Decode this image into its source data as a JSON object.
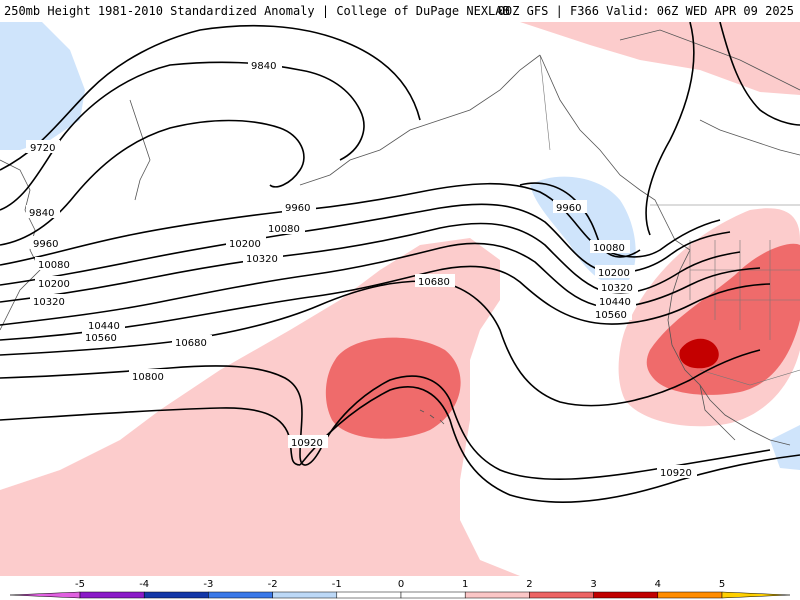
{
  "header": {
    "title_left": "250mb Height 1981-2010 Standardized Anomaly | College of DuPage NEXLAB",
    "title_right": "00Z GFS | F366 Valid: 06Z WED APR 09 2025"
  },
  "contour_labels": [
    "9720",
    "9840",
    "9840",
    "9960",
    "9960",
    "9960",
    "10080",
    "10080",
    "10080",
    "10200",
    "10200",
    "10200",
    "10320",
    "10320",
    "10320",
    "10440",
    "10440",
    "10560",
    "10560",
    "10680",
    "10680",
    "10800",
    "10920",
    "10920"
  ],
  "colorbar": {
    "ticks": [
      "-5",
      "-4",
      "-3",
      "-2",
      "-1",
      "0",
      "1",
      "2",
      "3",
      "4",
      "5"
    ],
    "colors": [
      "#e060e0",
      "#8a1ac8",
      "#1438a8",
      "#3a78e8",
      "#bcd8f6",
      "#ffffff",
      "#ffffff",
      "#fbc6c6",
      "#ec6464",
      "#c00000",
      "#ff8c00",
      "#ffd000"
    ]
  },
  "anomaly_colors": {
    "light_blue": "#cfe4fb",
    "light_pink": "#fccccc",
    "medium_red": "#ef6b6b",
    "dark_red": "#c40000",
    "blue": "#3a78e8"
  }
}
